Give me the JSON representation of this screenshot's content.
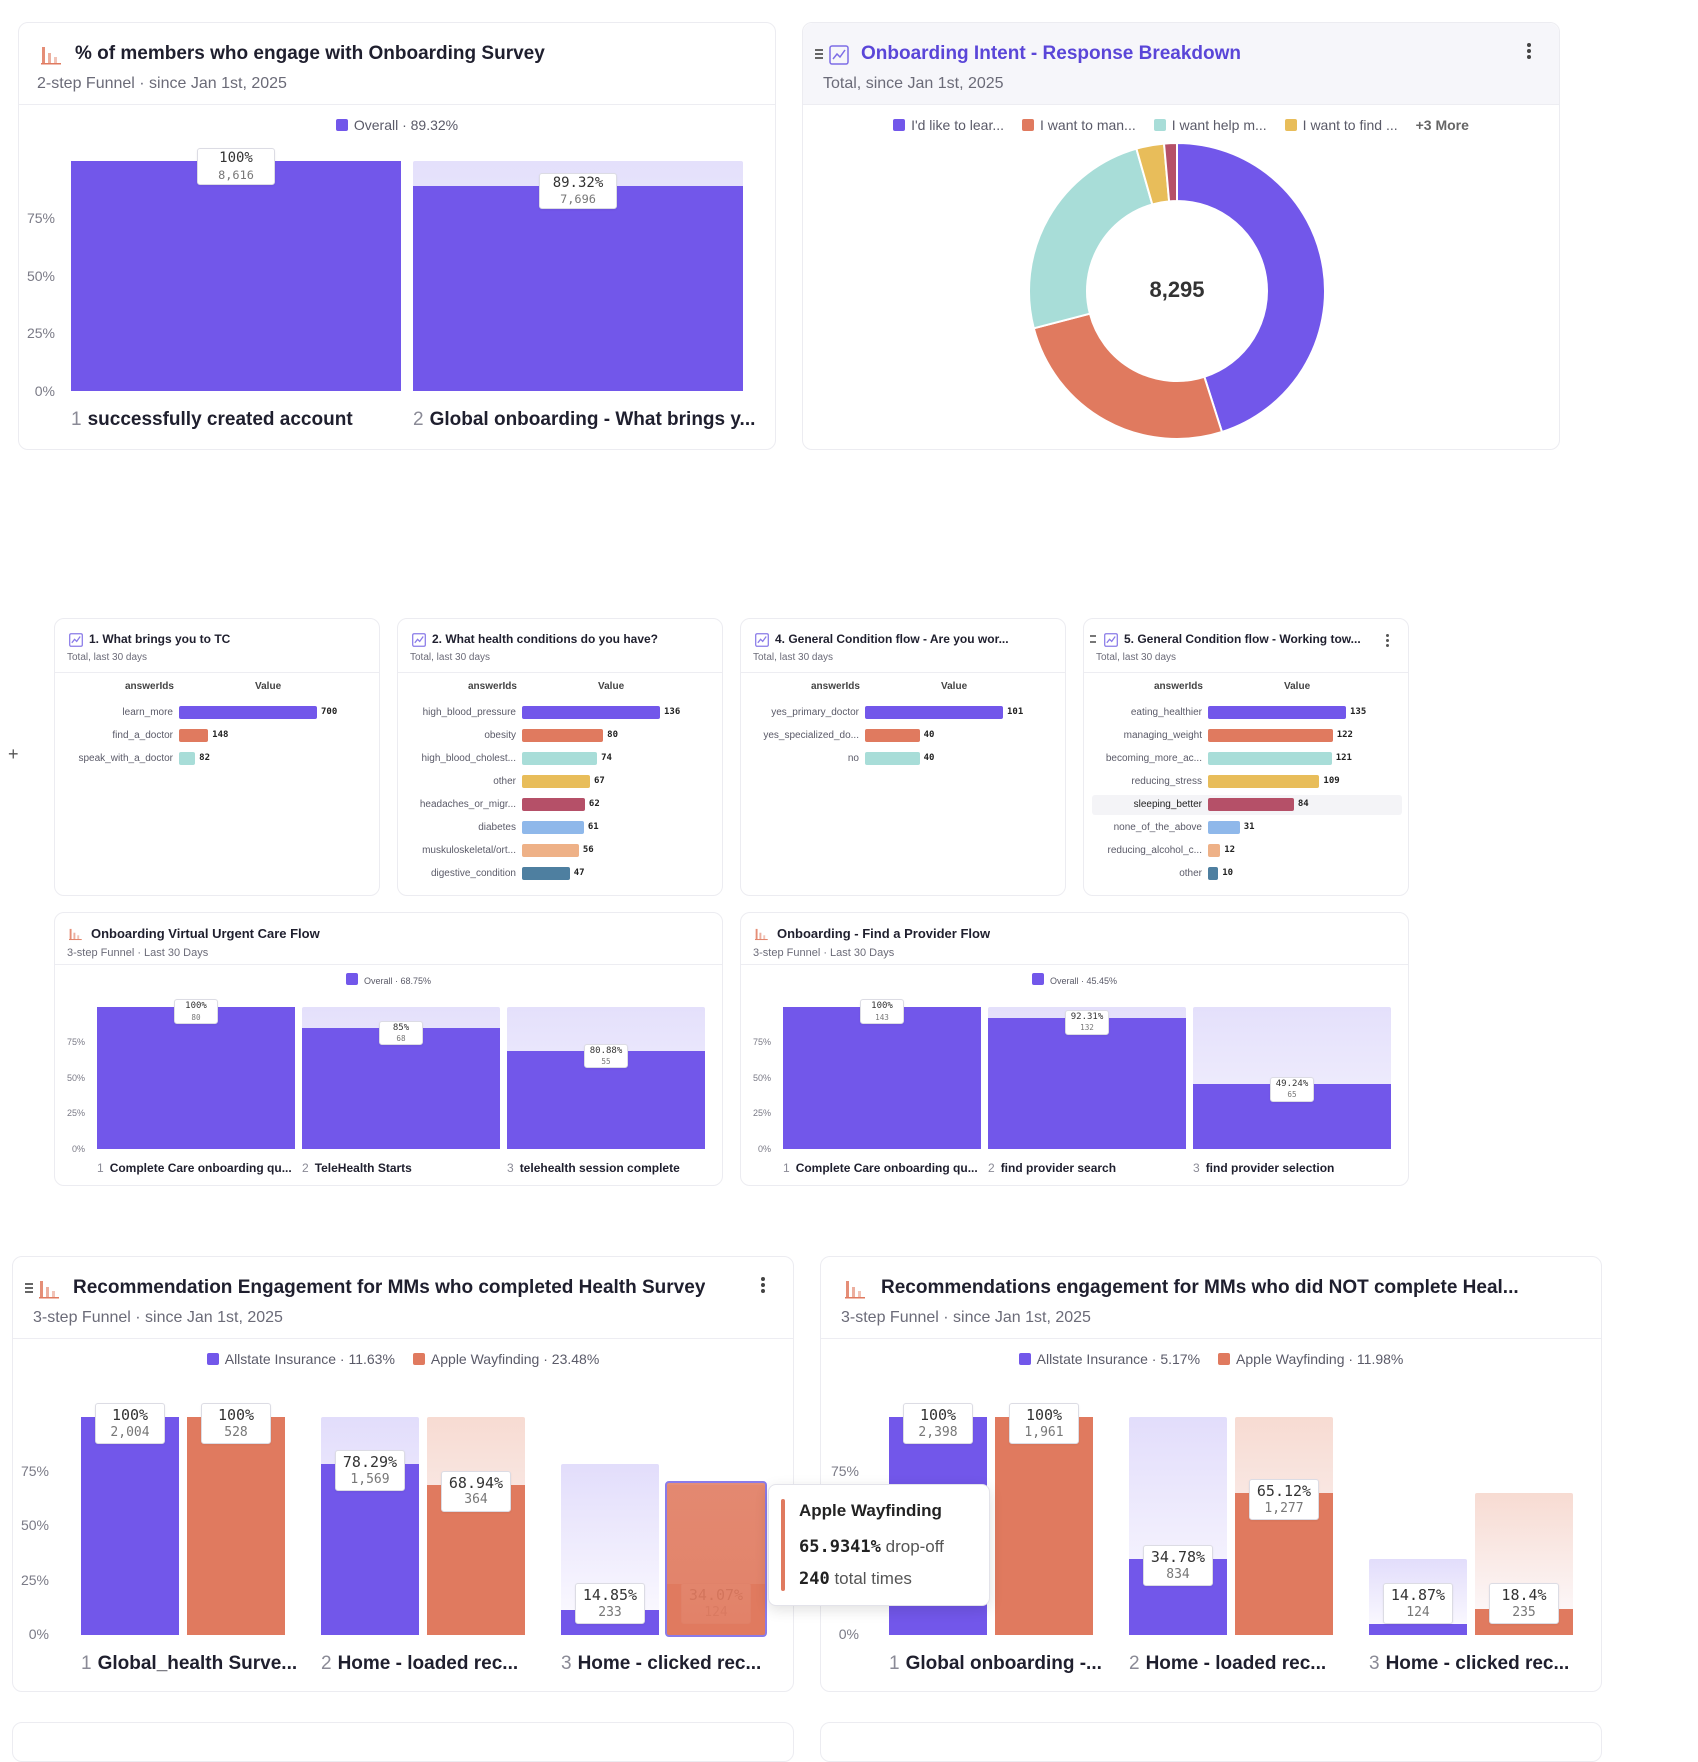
{
  "colors": {
    "purple": "#7257ea",
    "purple_bg": "#dcd6fb",
    "orange": "#e07a5f",
    "orange_bg": "#f7d9cf",
    "teal": "#a8ddd8",
    "gold": "#e8bd5a",
    "maroon": "#b55068",
    "lightblue": "#8fb8ea",
    "peach": "#eeb187",
    "steel": "#4e7fa0",
    "accent_title": "#5a46d8"
  },
  "cards": {
    "engage": {
      "title": "% of members who engage with Onboarding Survey",
      "subtitle": "2-step Funnel · since Jan 1st, 2025",
      "legend": [
        {
          "label": "Overall · 89.32%",
          "color": "#7257ea"
        }
      ],
      "yticks": [
        "75%",
        "50%",
        "25%",
        "0%"
      ],
      "steps": [
        {
          "num": "1",
          "label": "successfully created account",
          "pct": "100%",
          "count": "8,616",
          "value": 1.0
        },
        {
          "num": "2",
          "label": "Global onboarding - What brings y...",
          "pct": "89.32%",
          "count": "7,696",
          "value": 0.8932
        }
      ]
    },
    "intent": {
      "title": "Onboarding Intent - Response Breakdown",
      "subtitle": "Total, since Jan 1st, 2025",
      "legend": [
        {
          "label": "I'd like to lear...",
          "color": "#7257ea"
        },
        {
          "label": "I want to man...",
          "color": "#e07a5f"
        },
        {
          "label": "I want help m...",
          "color": "#a8ddd8"
        },
        {
          "label": "I want to find ...",
          "color": "#e8bd5a"
        }
      ],
      "legend_more": "+3 More",
      "center_total": "8,295",
      "menu_icon": "more-vertical-icon"
    },
    "q1": {
      "title": "1. What brings you to TC",
      "subtitle": "Total, last 30 days",
      "col1": "answerIds",
      "col2": "Value",
      "rows": [
        {
          "label": "learn_more",
          "value": 700,
          "color": "#7257ea"
        },
        {
          "label": "find_a_doctor",
          "value": 148,
          "color": "#e07a5f"
        },
        {
          "label": "speak_with_a_doctor",
          "value": 82,
          "color": "#a8ddd8"
        }
      ]
    },
    "q2": {
      "title": "2. What health conditions do you have?",
      "subtitle": "Total, last 30 days",
      "col1": "answerIds",
      "col2": "Value",
      "rows": [
        {
          "label": "high_blood_pressure",
          "value": 136,
          "color": "#7257ea"
        },
        {
          "label": "obesity",
          "value": 80,
          "color": "#e07a5f"
        },
        {
          "label": "high_blood_cholest...",
          "value": 74,
          "color": "#a8ddd8"
        },
        {
          "label": "other",
          "value": 67,
          "color": "#e8bd5a"
        },
        {
          "label": "headaches_or_migr...",
          "value": 62,
          "color": "#b55068"
        },
        {
          "label": "diabetes",
          "value": 61,
          "color": "#8fb8ea"
        },
        {
          "label": "muskuloskeletal/ort...",
          "value": 56,
          "color": "#eeb187"
        },
        {
          "label": "digestive_condition",
          "value": 47,
          "color": "#4e7fa0"
        }
      ]
    },
    "q4": {
      "title": "4. General Condition flow - Are you wor...",
      "subtitle": "Total, last 30 days",
      "col1": "answerIds",
      "col2": "Value",
      "rows": [
        {
          "label": "yes_primary_doctor",
          "value": 101,
          "color": "#7257ea"
        },
        {
          "label": "yes_specialized_do...",
          "value": 40,
          "color": "#e07a5f"
        },
        {
          "label": "no",
          "value": 40,
          "color": "#a8ddd8"
        }
      ]
    },
    "q5": {
      "title": "5. General Condition flow - Working tow...",
      "subtitle": "Total, last 30 days",
      "col1": "answerIds",
      "col2": "Value",
      "rows": [
        {
          "label": "eating_healthier",
          "value": 135,
          "color": "#7257ea"
        },
        {
          "label": "managing_weight",
          "value": 122,
          "color": "#e07a5f"
        },
        {
          "label": "becoming_more_ac...",
          "value": 121,
          "color": "#a8ddd8"
        },
        {
          "label": "reducing_stress",
          "value": 109,
          "color": "#e8bd5a"
        },
        {
          "label": "sleeping_better",
          "value": 84,
          "color": "#b55068"
        },
        {
          "label": "none_of_the_above",
          "value": 31,
          "color": "#8fb8ea"
        },
        {
          "label": "reducing_alcohol_c...",
          "value": 12,
          "color": "#eeb187"
        },
        {
          "label": "other",
          "value": 10,
          "color": "#4e7fa0"
        }
      ]
    },
    "vuc": {
      "title": "Onboarding Virtual Urgent Care Flow",
      "subtitle": "3-step Funnel · Last 30 Days",
      "legend": [
        {
          "label": "Overall · 68.75%",
          "color": "#7257ea"
        }
      ],
      "yticks": [
        "75%",
        "50%",
        "25%",
        "0%"
      ],
      "steps": [
        {
          "num": "1",
          "label": "Complete Care onboarding qu...",
          "pct": "100%",
          "count": "80",
          "value": 1.0
        },
        {
          "num": "2",
          "label": "TeleHealth Starts",
          "pct": "85%",
          "count": "68",
          "value": 0.85
        },
        {
          "num": "3",
          "label": "telehealth session complete",
          "pct": "80.88%",
          "count": "55",
          "value": 0.6875
        }
      ]
    },
    "provider": {
      "title": "Onboarding - Find a Provider Flow",
      "subtitle": "3-step Funnel · Last 30 Days",
      "legend": [
        {
          "label": "Overall · 45.45%",
          "color": "#7257ea"
        }
      ],
      "yticks": [
        "75%",
        "50%",
        "25%",
        "0%"
      ],
      "steps": [
        {
          "num": "1",
          "label": "Complete Care onboarding qu...",
          "pct": "100%",
          "count": "143",
          "value": 1.0
        },
        {
          "num": "2",
          "label": "find provider search",
          "pct": "92.31%",
          "count": "132",
          "value": 0.9231
        },
        {
          "num": "3",
          "label": "find provider selection",
          "pct": "49.24%",
          "count": "65",
          "value": 0.4545
        }
      ]
    },
    "rec_completed": {
      "title": "Recommendation Engagement for MMs who completed Health Survey",
      "subtitle": "3-step Funnel · since Jan 1st, 2025",
      "legend": [
        {
          "label": "Allstate Insurance · 11.63%",
          "color": "#7257ea"
        },
        {
          "label": "Apple Wayfinding · 23.48%",
          "color": "#e07a5f"
        }
      ],
      "yticks": [
        "75%",
        "50%",
        "25%",
        "0%"
      ],
      "steps": [
        {
          "num": "1",
          "label": "Global_health Surve..."
        },
        {
          "num": "2",
          "label": "Home - loaded rec..."
        },
        {
          "num": "3",
          "label": "Home - clicked rec..."
        }
      ],
      "bars": [
        [
          {
            "pct": "100%",
            "count": "2,004",
            "value": 1.0,
            "bg": 1.0
          },
          {
            "pct": "100%",
            "count": "528",
            "value": 1.0,
            "bg": 1.0
          }
        ],
        [
          {
            "pct": "78.29%",
            "count": "1,569",
            "value": 0.7829,
            "bg": 1.0
          },
          {
            "pct": "68.94%",
            "count": "364",
            "value": 0.6894,
            "bg": 1.0
          }
        ],
        [
          {
            "pct": "14.85%",
            "count": "233",
            "value": 0.1163,
            "bg": 0.7829
          },
          {
            "pct": "34.07%",
            "count": "124",
            "value": 0.2348,
            "bg": 0.6894
          }
        ]
      ],
      "menu_icon": "more-vertical-icon",
      "tooltip": {
        "series": "Apple Wayfinding",
        "dropoff_value": "65.9341%",
        "dropoff_label": "drop-off",
        "total_value": "240",
        "total_label": "total times"
      }
    },
    "rec_not_completed": {
      "title": "Recommendations engagement for MMs who did NOT complete Heal...",
      "subtitle": "3-step Funnel · since Jan 1st, 2025",
      "legend": [
        {
          "label": "Allstate Insurance · 5.17%",
          "color": "#7257ea"
        },
        {
          "label": "Apple Wayfinding · 11.98%",
          "color": "#e07a5f"
        }
      ],
      "yticks": [
        "75%",
        "50%",
        "25%",
        "0%"
      ],
      "steps": [
        {
          "num": "1",
          "label": "Global onboarding -..."
        },
        {
          "num": "2",
          "label": "Home - loaded rec..."
        },
        {
          "num": "3",
          "label": "Home - clicked rec..."
        }
      ],
      "bars": [
        [
          {
            "pct": "100%",
            "count": "2,398",
            "value": 1.0,
            "bg": 1.0
          },
          {
            "pct": "100%",
            "count": "1,961",
            "value": 1.0,
            "bg": 1.0
          }
        ],
        [
          {
            "pct": "34.78%",
            "count": "834",
            "value": 0.3478,
            "bg": 1.0
          },
          {
            "pct": "65.12%",
            "count": "1,277",
            "value": 0.6512,
            "bg": 1.0
          }
        ],
        [
          {
            "pct": "14.87%",
            "count": "124",
            "value": 0.0517,
            "bg": 0.3478
          },
          {
            "pct": "18.4%",
            "count": "235",
            "value": 0.1198,
            "bg": 0.6512
          }
        ]
      ]
    }
  },
  "chart_data": [
    {
      "type": "bar",
      "title": "% of members who engage with Onboarding Survey",
      "categories": [
        "successfully created account",
        "Global onboarding - What brings y..."
      ],
      "series": [
        {
          "name": "Overall",
          "values": [
            100,
            89.32
          ]
        }
      ],
      "ylim": [
        0,
        100
      ]
    },
    {
      "type": "pie",
      "title": "Onboarding Intent - Response Breakdown",
      "categories": [
        "I'd like to lear...",
        "I want to man...",
        "I want help m...",
        "I want to find ...",
        "+3 More"
      ],
      "values": [
        3740,
        2145,
        2043,
        251,
        116
      ],
      "total": 8295
    },
    {
      "type": "bar",
      "title": "1. What brings you to TC",
      "categories": [
        "learn_more",
        "find_a_doctor",
        "speak_with_a_doctor"
      ],
      "values": [
        700,
        148,
        82
      ]
    },
    {
      "type": "bar",
      "title": "2. What health conditions do you have?",
      "categories": [
        "high_blood_pressure",
        "obesity",
        "high_blood_cholest...",
        "other",
        "headaches_or_migr...",
        "diabetes",
        "muskuloskeletal/ort...",
        "digestive_condition"
      ],
      "values": [
        136,
        80,
        74,
        67,
        62,
        61,
        56,
        47
      ]
    },
    {
      "type": "bar",
      "title": "4. General Condition flow - Are you wor...",
      "categories": [
        "yes_primary_doctor",
        "yes_specialized_do...",
        "no"
      ],
      "values": [
        101,
        40,
        40
      ]
    },
    {
      "type": "bar",
      "title": "5. General Condition flow - Working tow...",
      "categories": [
        "eating_healthier",
        "managing_weight",
        "becoming_more_ac...",
        "reducing_stress",
        "sleeping_better",
        "none_of_the_above",
        "reducing_alcohol_c...",
        "other"
      ],
      "values": [
        135,
        122,
        121,
        109,
        84,
        31,
        12,
        10
      ]
    },
    {
      "type": "bar",
      "title": "Onboarding Virtual Urgent Care Flow",
      "categories": [
        "Complete Care onboarding qu...",
        "TeleHealth Starts",
        "telehealth session complete"
      ],
      "series": [
        {
          "name": "Overall",
          "values": [
            100,
            85,
            68.75
          ]
        }
      ],
      "ylim": [
        0,
        100
      ]
    },
    {
      "type": "bar",
      "title": "Onboarding - Find a Provider Flow",
      "categories": [
        "Complete Care onboarding qu...",
        "find provider search",
        "find provider selection"
      ],
      "series": [
        {
          "name": "Overall",
          "values": [
            100,
            92.31,
            45.45
          ]
        }
      ],
      "ylim": [
        0,
        100
      ]
    },
    {
      "type": "bar",
      "title": "Recommendation Engagement for MMs who completed Health Survey",
      "categories": [
        "Global_health Surve...",
        "Home - loaded rec...",
        "Home - clicked rec..."
      ],
      "series": [
        {
          "name": "Allstate Insurance",
          "values": [
            100,
            78.29,
            11.63
          ]
        },
        {
          "name": "Apple Wayfinding",
          "values": [
            100,
            68.94,
            23.48
          ]
        }
      ],
      "ylim": [
        0,
        100
      ]
    },
    {
      "type": "bar",
      "title": "Recommendations engagement for MMs who did NOT complete Heal...",
      "categories": [
        "Global onboarding -...",
        "Home - loaded rec...",
        "Home - clicked rec..."
      ],
      "series": [
        {
          "name": "Allstate Insurance",
          "values": [
            100,
            34.78,
            5.17
          ]
        },
        {
          "name": "Apple Wayfinding",
          "values": [
            100,
            65.12,
            11.98
          ]
        }
      ],
      "ylim": [
        0,
        100
      ]
    }
  ]
}
